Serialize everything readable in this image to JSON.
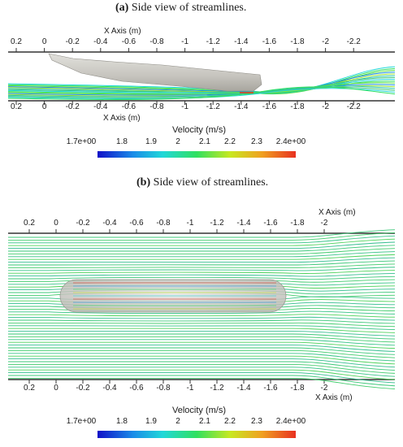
{
  "panel_a": {
    "caption_letter": "(a)",
    "caption_text": "Side view of streamlines.",
    "axis_title_top": "X Axis (m)",
    "axis_title_bottom": "X Axis (m)",
    "ticks_top": [
      "0.2",
      "0",
      "-0.2",
      "-0.4",
      "-0.6",
      "-0.8",
      "-1",
      "-1.2",
      "-1.4",
      "-1.6",
      "-1.8",
      "-2",
      "-2.2"
    ],
    "ticks_bottom": [
      "0.2",
      "0",
      "-0.2",
      "-0.4",
      "-0.6",
      "-0.8",
      "-1",
      "-1.2",
      "-1.4",
      "-1.6",
      "-1.8",
      "-2",
      "-2.2"
    ],
    "colorbar": {
      "title": "Velocity (m/s)",
      "labels": [
        "1.7e+00",
        "1.8",
        "1.9",
        "2",
        "2.1",
        "2.2",
        "2.3",
        "2.4e+00"
      ]
    }
  },
  "panel_b": {
    "caption_letter": "(b)",
    "caption_text": "Side view of streamlines.",
    "axis_title_top": "X Axis (m)",
    "axis_title_bottom": "X Axis (m)",
    "ticks_top": [
      "0.2",
      "0",
      "-0.2",
      "-0.4",
      "-0.6",
      "-0.8",
      "-1",
      "-1.2",
      "-1.4",
      "-1.6",
      "-1.8",
      "-2"
    ],
    "ticks_bottom": [
      "0.2",
      "0",
      "-0.2",
      "-0.4",
      "-0.6",
      "-0.8",
      "-1",
      "-1.2",
      "-1.4",
      "-1.6",
      "-1.8",
      "-2"
    ],
    "colorbar": {
      "title": "Velocity (m/s)",
      "labels": [
        "1.7e+00",
        "1.8",
        "1.9",
        "2",
        "2.1",
        "2.2",
        "2.3",
        "2.4e+00"
      ]
    }
  },
  "colors": {
    "hull": "#c8c6c0",
    "streamline_main": "#3ec87a",
    "colormap": [
      "#1010c8",
      "#1a8ce8",
      "#20d8d8",
      "#30e060",
      "#c8e820",
      "#f0a020",
      "#e83020"
    ]
  }
}
